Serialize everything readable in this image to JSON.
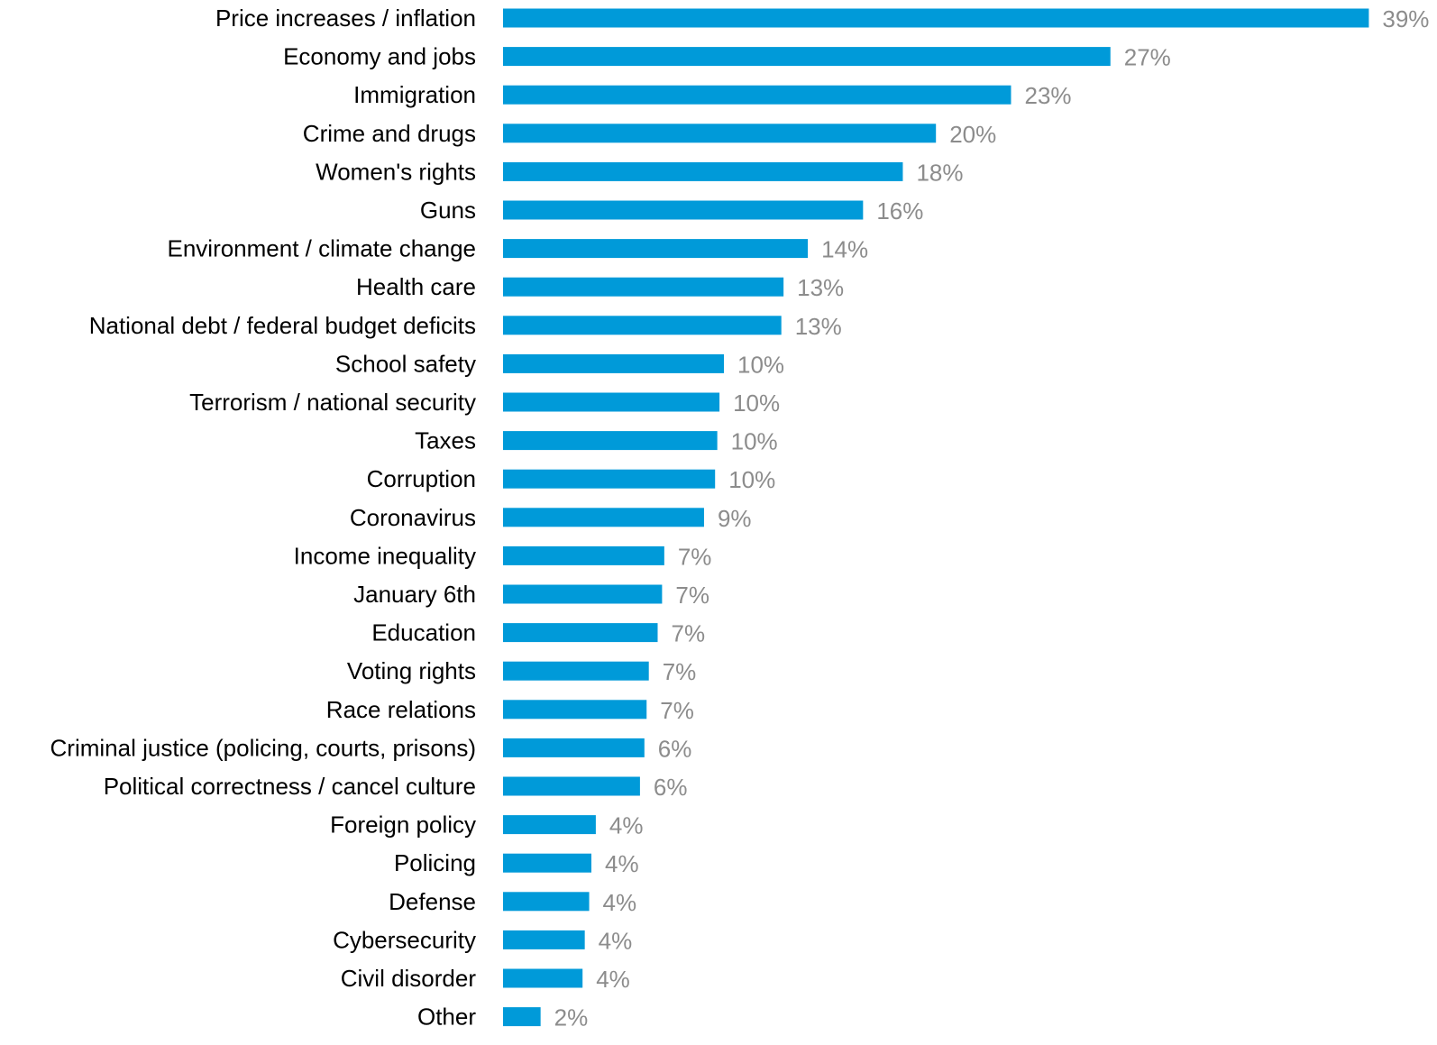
{
  "chart_data": {
    "type": "bar",
    "orientation": "horizontal",
    "categories": [
      "Price increases / inflation",
      "Economy and jobs",
      "Immigration",
      "Crime and drugs",
      "Women's rights",
      "Guns",
      "Environment / climate change",
      "Health care",
      "National debt / federal budget deficits",
      "School safety",
      "Terrorism / national security",
      "Taxes",
      "Corruption",
      "Coronavirus",
      "Income inequality",
      "January 6th",
      "Education",
      "Voting rights",
      "Race relations",
      "Criminal justice (policing, courts, prisons)",
      "Political correctness / cancel culture",
      "Foreign policy",
      "Policing",
      "Defense",
      "Cybersecurity",
      "Civil disorder",
      "Other"
    ],
    "values": [
      39.2,
      27.5,
      23.0,
      19.6,
      18.1,
      16.3,
      13.8,
      12.7,
      12.6,
      10.0,
      9.8,
      9.7,
      9.6,
      9.1,
      7.3,
      7.2,
      7.0,
      6.6,
      6.5,
      6.4,
      6.2,
      4.2,
      4.0,
      3.9,
      3.7,
      3.6,
      1.7
    ],
    "value_labels": [
      "39%",
      "27%",
      "23%",
      "20%",
      "18%",
      "16%",
      "14%",
      "13%",
      "13%",
      "10%",
      "10%",
      "10%",
      "10%",
      "9%",
      "7%",
      "7%",
      "7%",
      "7%",
      "7%",
      "6%",
      "6%",
      "4%",
      "4%",
      "4%",
      "4%",
      "4%",
      "2%"
    ],
    "xlim": [
      0,
      40
    ],
    "grid": false,
    "legend": "none",
    "bar_color": "#009ad9",
    "value_label_color": "#8c8c8c"
  }
}
